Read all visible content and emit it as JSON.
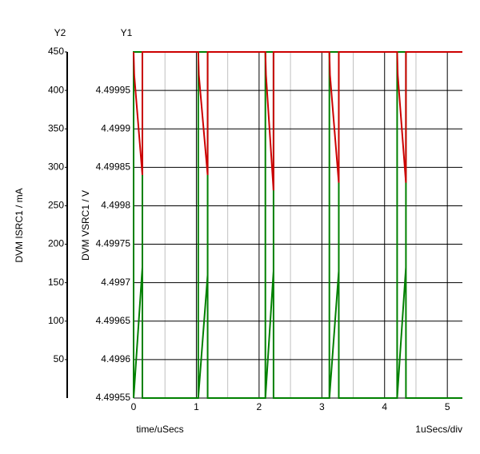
{
  "chart_data": {
    "type": "line",
    "y2_title": "Y2",
    "y1_title": "Y1",
    "xlabel": "time/uSecs",
    "x_scale_label": "1uSecs/div",
    "ylabel": "DVM VSRC1 / V",
    "y2label": "DVM ISRC1 / mA",
    "xlim": [
      0,
      5.24
    ],
    "xticks": [
      0,
      1,
      2,
      3,
      4,
      5
    ],
    "ylim": [
      4.49955,
      4.5
    ],
    "yticks": [
      4.49955,
      4.4996,
      4.49965,
      4.4997,
      4.49975,
      4.4998,
      4.49985,
      4.4999,
      4.49995
    ],
    "y2lim": [
      0,
      450
    ],
    "y2ticks": [
      50,
      100,
      150,
      200,
      250,
      300,
      350,
      400,
      450
    ],
    "grid": true,
    "series": [
      {
        "name": "DVM ISRC1 / mA",
        "color": "#008000",
        "axis": "y2",
        "x": [
          0,
          0,
          0.14,
          0.14,
          1.03,
          1.03,
          1.18,
          1.18,
          2.1,
          2.1,
          2.23,
          2.23,
          3.12,
          3.12,
          3.27,
          3.27,
          4.2,
          4.2,
          4.34,
          4.34,
          5.24,
          null,
          0,
          0.14,
          null,
          1.03,
          1.18,
          null,
          2.1,
          2.23,
          null,
          3.12,
          3.27,
          null,
          4.2,
          4.34
        ],
        "values": [
          0,
          450,
          450,
          0,
          0,
          450,
          450,
          0,
          0,
          450,
          450,
          0,
          0,
          450,
          450,
          0,
          0,
          450,
          450,
          0,
          0,
          null,
          0,
          170,
          null,
          0,
          160,
          null,
          0,
          165,
          null,
          0,
          165,
          null,
          0,
          170
        ]
      },
      {
        "name": "DVM VSRC1 / V",
        "color": "#cc0000",
        "axis": "y",
        "x": [
          0,
          0.01,
          0.14,
          0.14,
          1.03,
          1.04,
          1.18,
          1.18,
          2.1,
          2.11,
          2.23,
          2.23,
          3.12,
          3.13,
          3.27,
          3.27,
          4.2,
          4.21,
          4.34,
          4.34,
          5.24
        ],
        "values": [
          4.5,
          4.49997,
          4.49984,
          4.5,
          4.5,
          4.49997,
          4.49984,
          4.5,
          4.5,
          4.49997,
          4.49982,
          4.5,
          4.5,
          4.49997,
          4.49983,
          4.5,
          4.5,
          4.49997,
          4.49983,
          4.5,
          4.5
        ]
      }
    ]
  }
}
